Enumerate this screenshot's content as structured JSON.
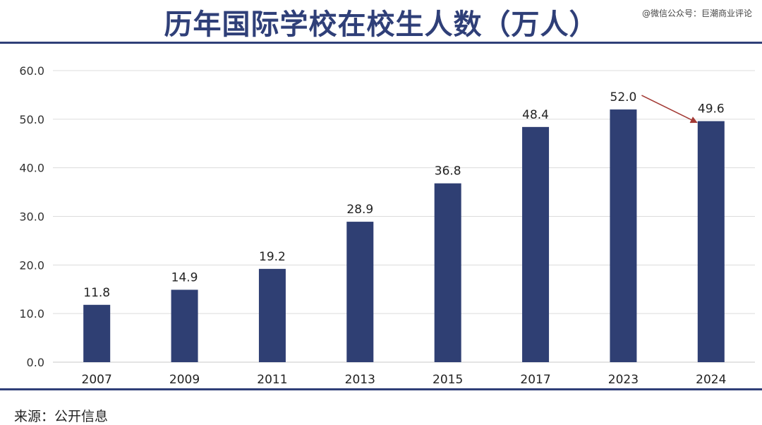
{
  "header": {
    "title": "历年国际学校在校生人数（万人）",
    "watermark": "@微信公众号：巨潮商业评论"
  },
  "footer": {
    "source": "来源：公开信息"
  },
  "colors": {
    "bar": "#2f3f73",
    "accent": "#2f3f78",
    "arrow": "#a33a35",
    "grid": "#dcdcdc"
  },
  "chart_data": {
    "type": "bar",
    "title": "历年国际学校在校生人数（万人）",
    "xlabel": "",
    "ylabel": "",
    "categories": [
      "2007",
      "2009",
      "2011",
      "2013",
      "2015",
      "2017",
      "2023",
      "2024"
    ],
    "values": [
      11.8,
      14.9,
      19.2,
      28.9,
      36.8,
      48.4,
      52.0,
      49.6
    ],
    "data_labels": [
      "11.8",
      "14.9",
      "19.2",
      "28.9",
      "36.8",
      "48.4",
      "52.0",
      "49.6"
    ],
    "ylim": [
      0,
      60
    ],
    "yticks": [
      "0.0",
      "10.0",
      "20.0",
      "30.0",
      "40.0",
      "50.0",
      "60.0"
    ],
    "grid": true,
    "legend": "none",
    "annotations": [
      {
        "type": "arrow",
        "from": "2023",
        "to": "2024"
      }
    ]
  }
}
